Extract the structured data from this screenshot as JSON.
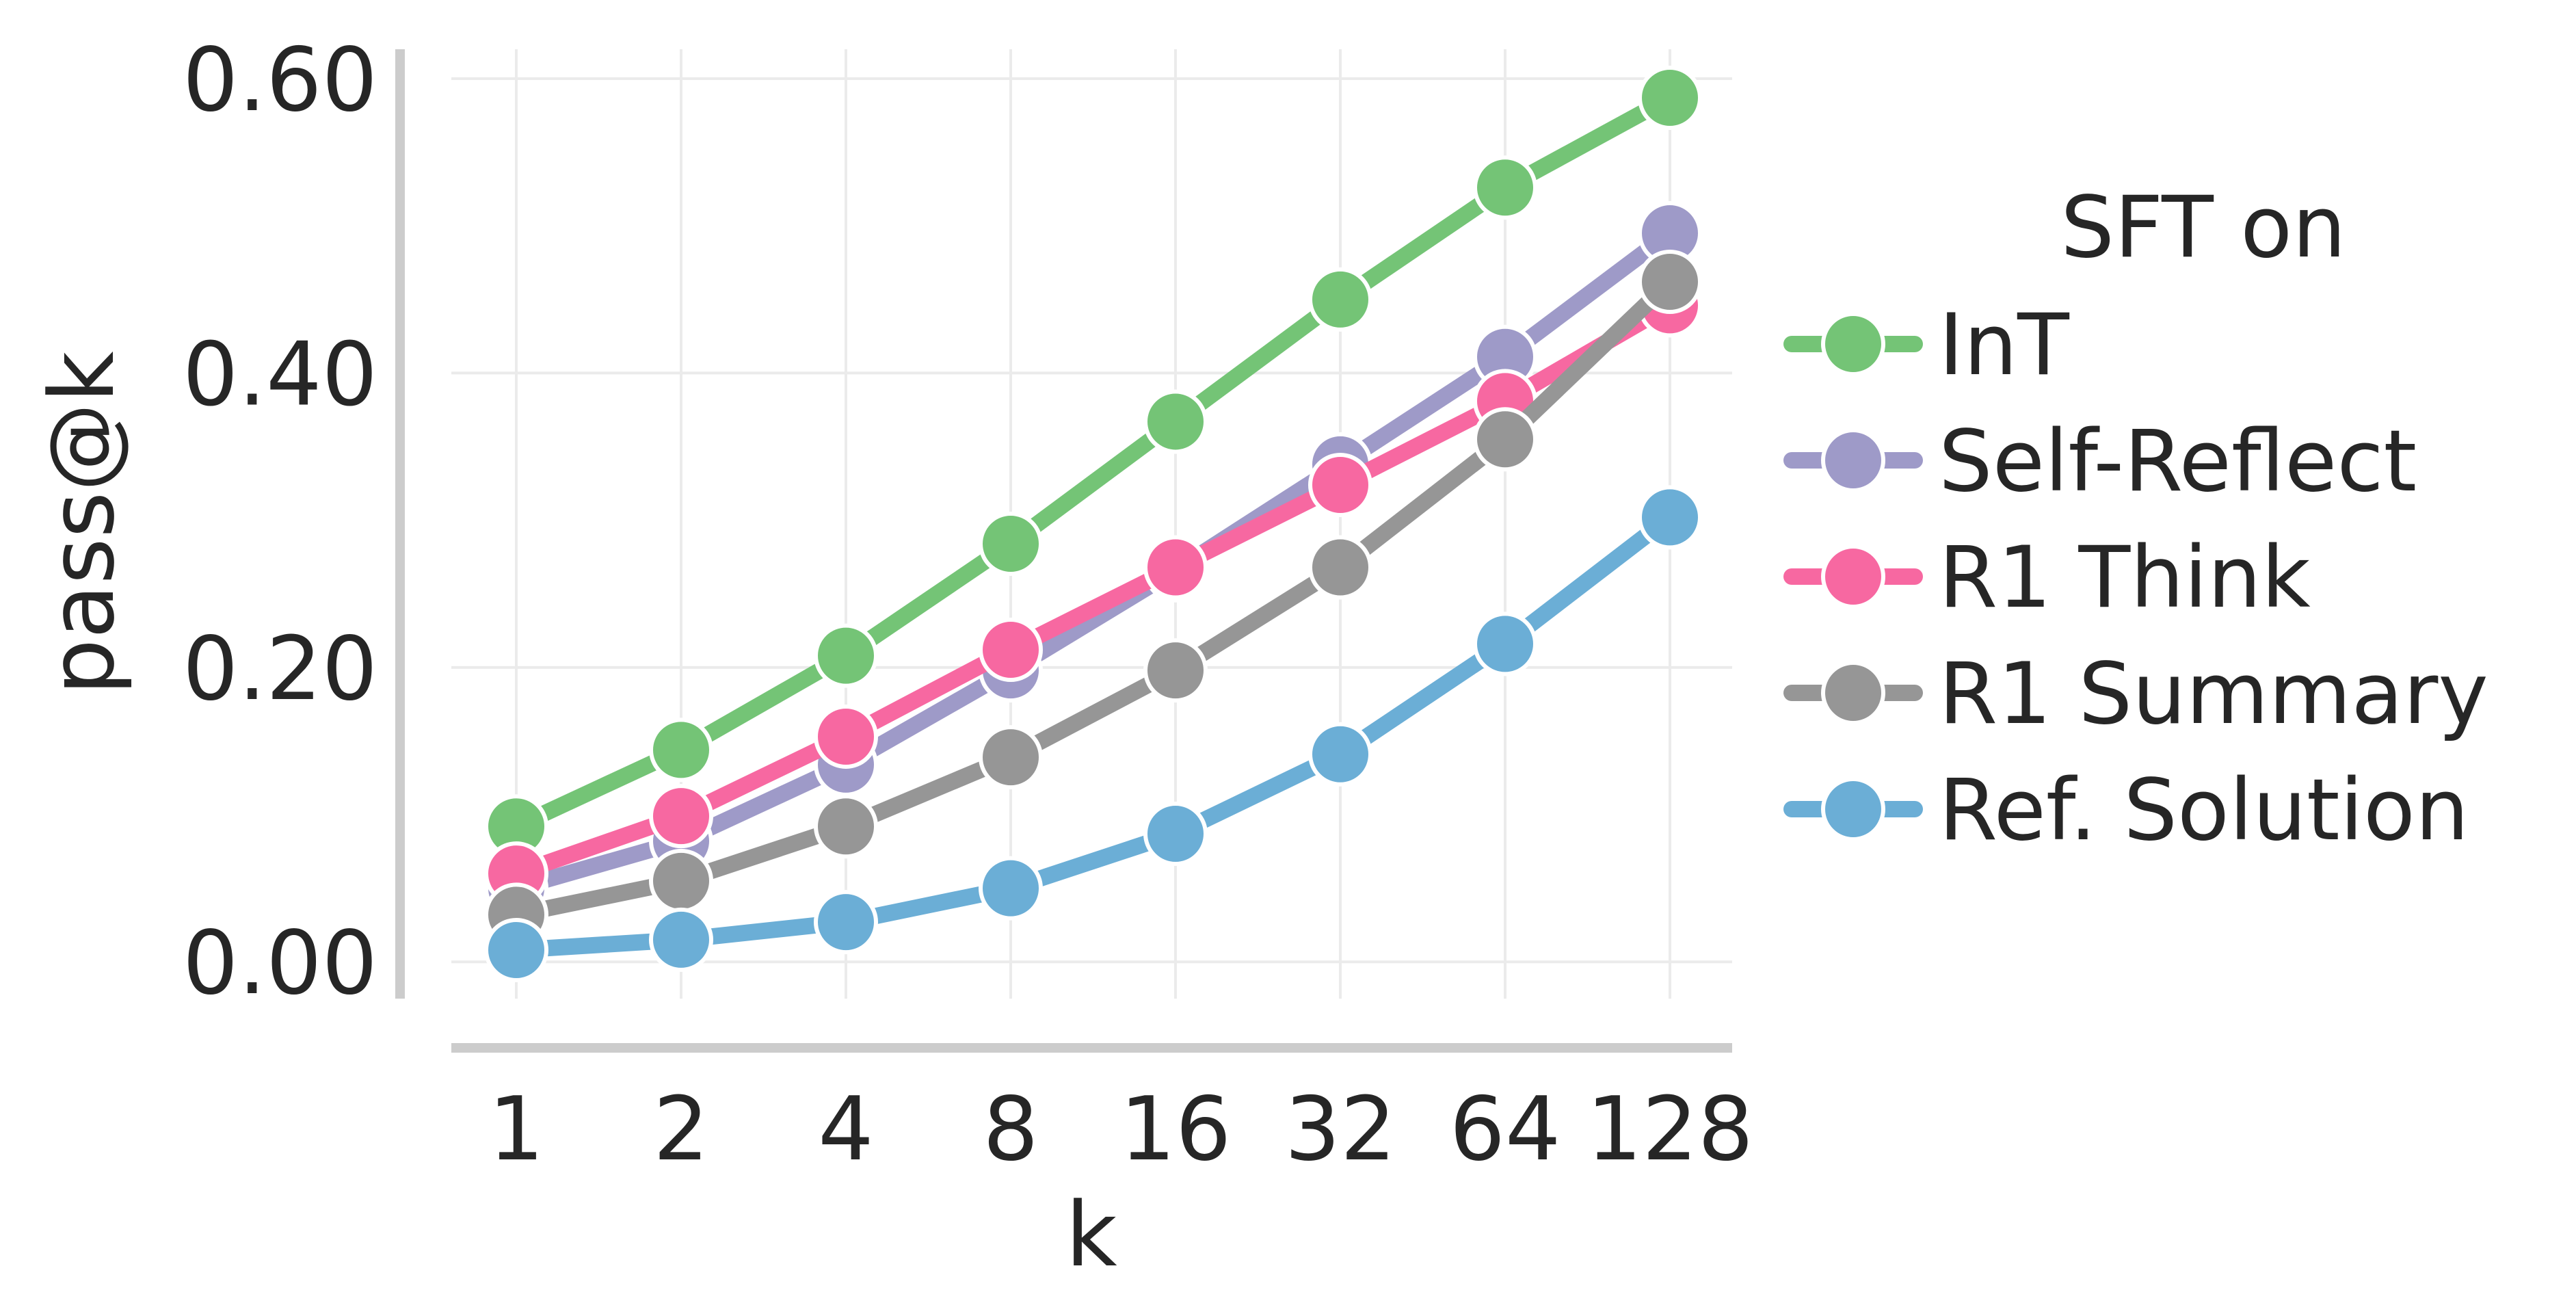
{
  "chart_data": {
    "type": "line",
    "xlabel": "k",
    "ylabel": "pass@k",
    "x": [
      "1",
      "2",
      "4",
      "8",
      "16",
      "32",
      "64",
      "128"
    ],
    "x_scale": "log2",
    "ylim": [
      -0.025,
      0.62
    ],
    "yticks": [
      "0.00",
      "0.20",
      "0.40",
      "0.60"
    ],
    "ytick_values": [
      0.0,
      0.2,
      0.4,
      0.6
    ],
    "grid": true,
    "legend": {
      "title": "SFT on",
      "placement": "right"
    },
    "series": [
      {
        "name": "InT",
        "color": "#74c476",
        "values": [
          0.092,
          0.144,
          0.208,
          0.284,
          0.367,
          0.45,
          0.526,
          0.587
        ]
      },
      {
        "name": "Self-Reflect",
        "color": "#9e9ac8",
        "values": [
          0.05,
          0.082,
          0.134,
          0.198,
          0.266,
          0.338,
          0.411,
          0.495
        ]
      },
      {
        "name": "R1 Think",
        "color": "#f768a1",
        "values": [
          0.06,
          0.099,
          0.153,
          0.212,
          0.268,
          0.324,
          0.381,
          0.446
        ]
      },
      {
        "name": "R1 Summary",
        "color": "#969696",
        "values": [
          0.032,
          0.055,
          0.092,
          0.139,
          0.198,
          0.268,
          0.355,
          0.462
        ]
      },
      {
        "name": "Ref. Solution",
        "color": "#6baed6",
        "values": [
          0.008,
          0.015,
          0.027,
          0.05,
          0.087,
          0.141,
          0.216,
          0.302
        ]
      }
    ]
  }
}
